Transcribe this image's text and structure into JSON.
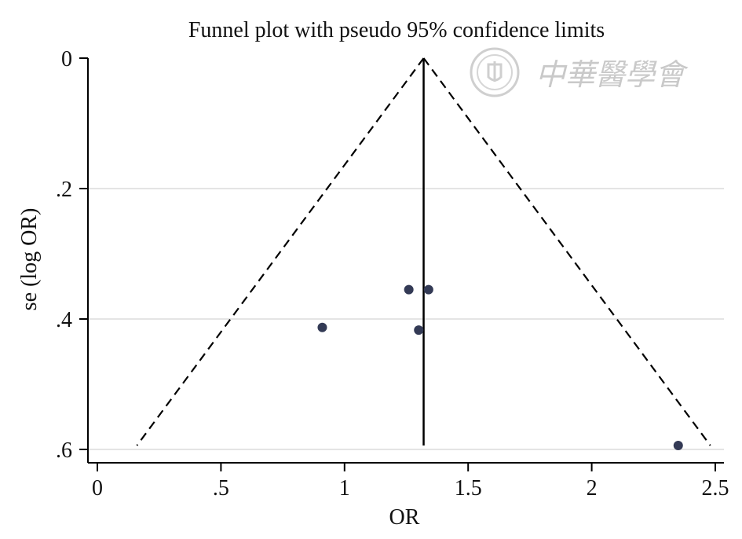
{
  "chart_data": {
    "type": "scatter",
    "title": "Funnel plot with pseudo 95% confidence limits",
    "xlabel": "OR",
    "ylabel": "se (log OR)",
    "xlim": [
      0,
      2.5
    ],
    "ylim": [
      0,
      0.6
    ],
    "y_reversed": true,
    "x_ticks": [
      {
        "value": 0,
        "label": "0"
      },
      {
        "value": 0.5,
        "label": ".5"
      },
      {
        "value": 1,
        "label": "1"
      },
      {
        "value": 1.5,
        "label": "1.5"
      },
      {
        "value": 2,
        "label": "2"
      },
      {
        "value": 2.5,
        "label": "2.5"
      }
    ],
    "y_ticks": [
      {
        "value": 0,
        "label": "0"
      },
      {
        "value": 0.2,
        "label": ".2"
      },
      {
        "value": 0.4,
        "label": ".4"
      },
      {
        "value": 0.6,
        "label": ".6"
      }
    ],
    "gridlines_y": [
      0.2,
      0.4,
      0.6
    ],
    "pooled_or": 1.32,
    "pooled_line": {
      "x": 1.32,
      "y_from": 0,
      "y_to": 0.594
    },
    "ci_limits": [
      {
        "name": "lower",
        "points": [
          [
            1.32,
            0
          ],
          [
            0.16,
            0.594
          ]
        ]
      },
      {
        "name": "upper",
        "points": [
          [
            1.32,
            0
          ],
          [
            2.48,
            0.594
          ]
        ]
      }
    ],
    "points": [
      {
        "x": 1.26,
        "y": 0.355
      },
      {
        "x": 1.34,
        "y": 0.355
      },
      {
        "x": 0.91,
        "y": 0.413
      },
      {
        "x": 1.3,
        "y": 0.417
      },
      {
        "x": 2.35,
        "y": 0.594
      }
    ],
    "marker_color": "#333a55"
  },
  "watermark": {
    "text": "中華醫學會",
    "emblem": "seal-emblem"
  }
}
